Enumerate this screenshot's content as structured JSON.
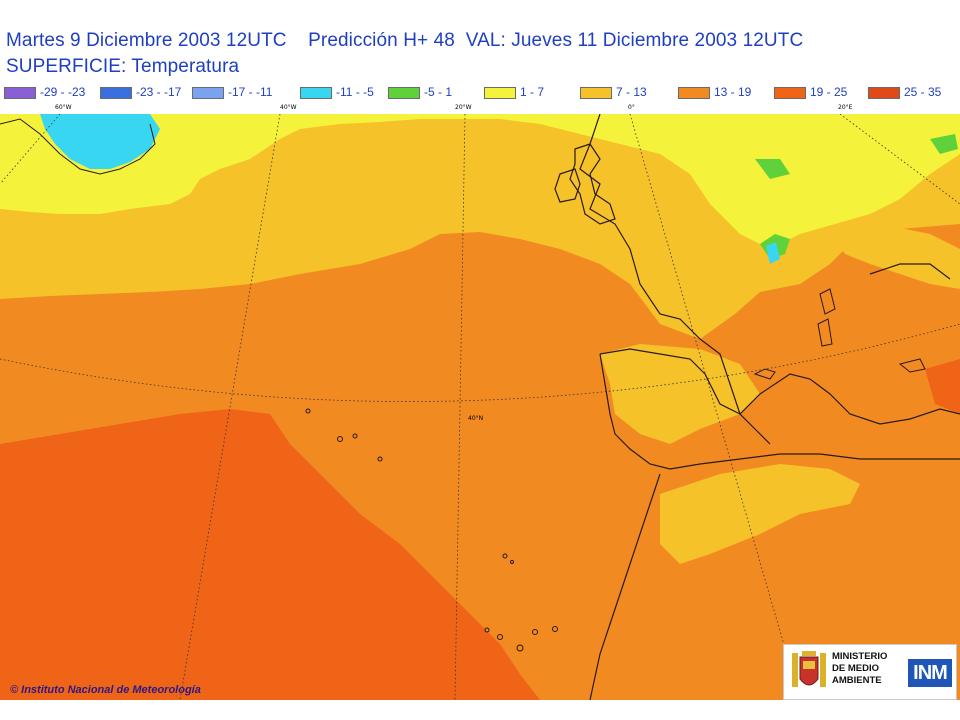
{
  "header": {
    "title_line_1": "Martes 9 Diciembre 2003 12UTC    Predicción H+ 48  VAL: Jueves 11 Diciembre 2003 12UTC",
    "title_line_2": "SUPERFICIE: Temperatura"
  },
  "legend": [
    {
      "label": "-29 - -23",
      "color": "#8a5fd6"
    },
    {
      "label": "-23 - -17",
      "color": "#3a6fe0"
    },
    {
      "label": "-17 - -11",
      "color": "#7aa2f0"
    },
    {
      "label": "-11 - -5",
      "color": "#38d6f0"
    },
    {
      "label": "-5 - 1",
      "color": "#5fd13a"
    },
    {
      "label": "1 - 7",
      "color": "#f4f23a"
    },
    {
      "label": "7 - 13",
      "color": "#f6c22a"
    },
    {
      "label": "13 - 19",
      "color": "#f28a22"
    },
    {
      "label": "19 - 25",
      "color": "#f06418"
    },
    {
      "label": "25 - 35",
      "color": "#e04a1a"
    }
  ],
  "map": {
    "longitude_labels": [
      "60°W",
      "40°W",
      "20°W",
      "0°",
      "20°E"
    ],
    "latitude_label": "40°N"
  },
  "footer": {
    "copyright": "© Instituto Nacional de Meteorología",
    "ministry_lines": [
      "MINISTERIO",
      "DE MEDIO",
      "AMBIENTE"
    ],
    "inm_logo": "INM"
  }
}
